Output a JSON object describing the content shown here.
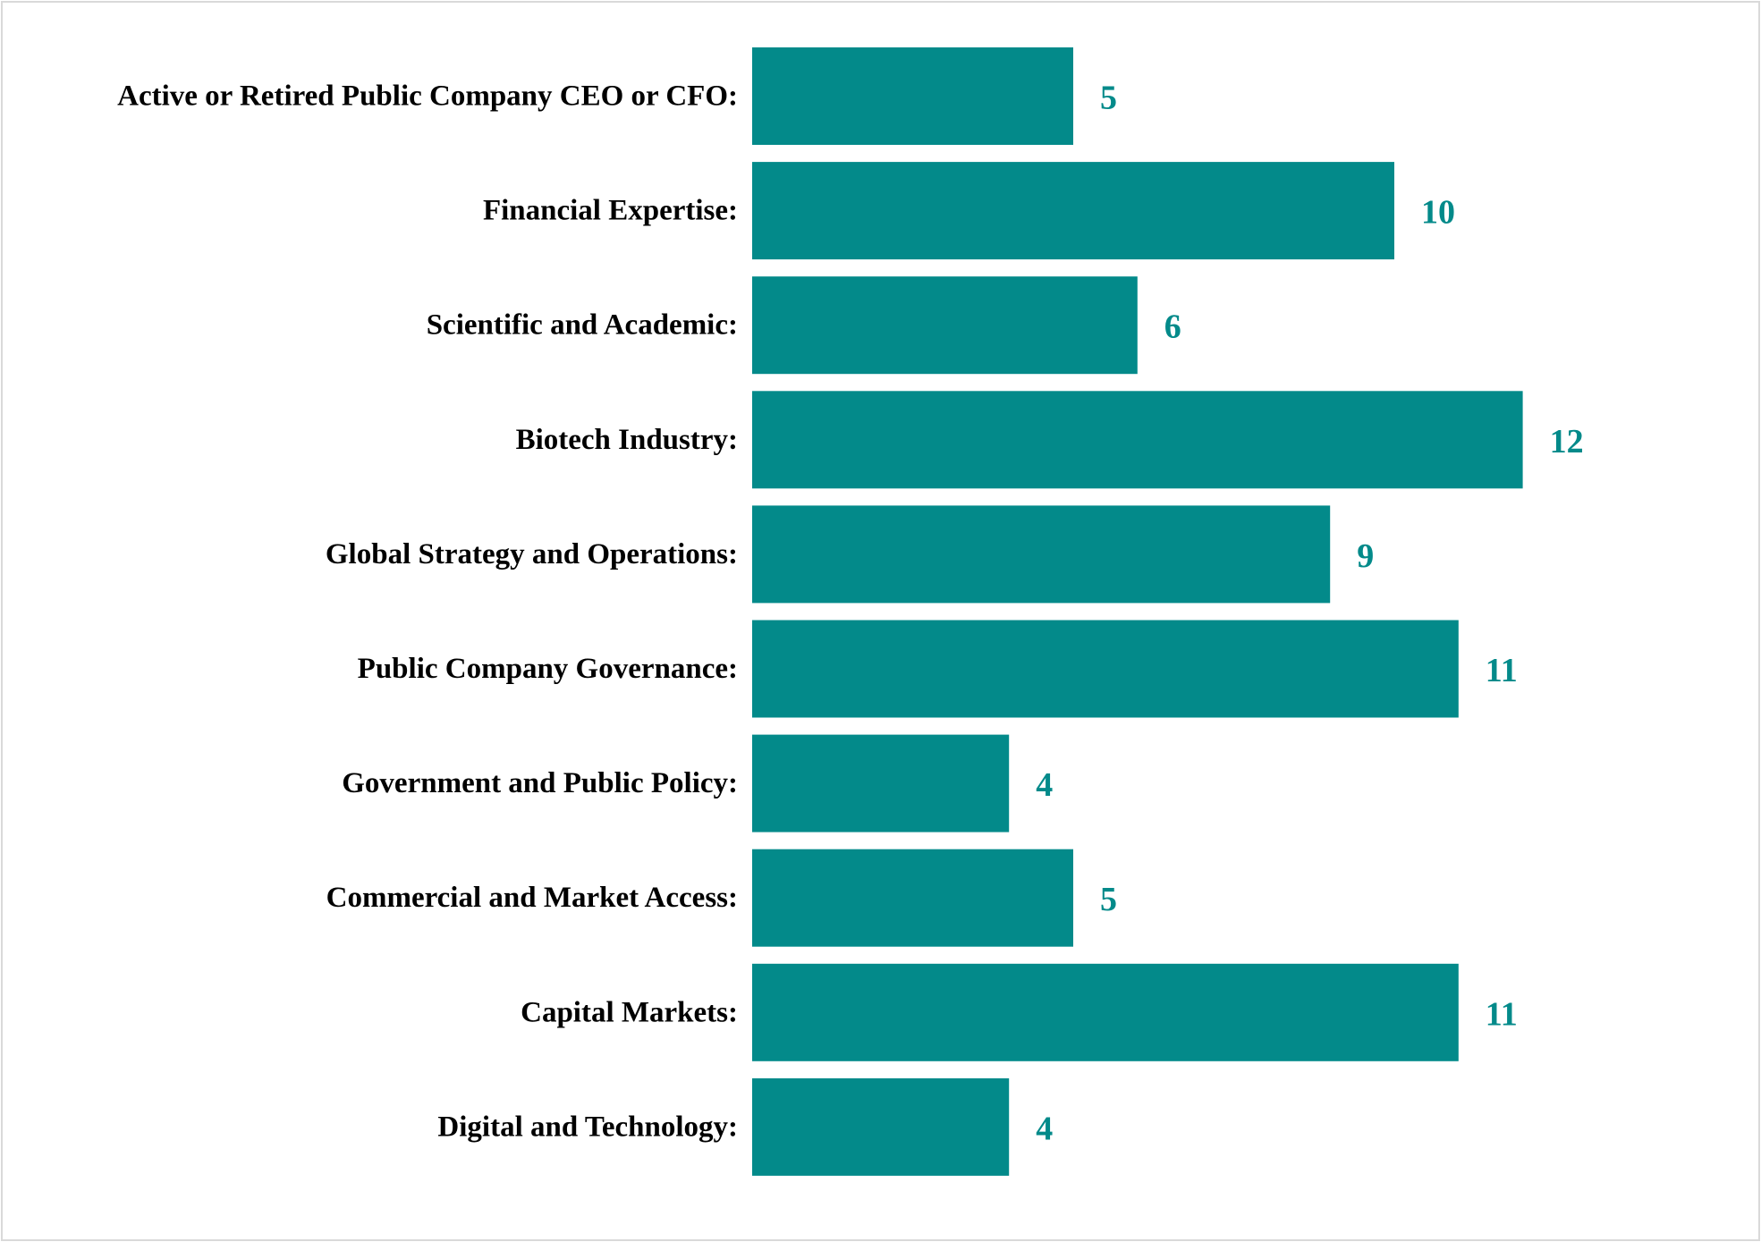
{
  "chart_data": {
    "type": "bar",
    "orientation": "horizontal",
    "categories": [
      "Active or Retired Public Company CEO or CFO:",
      "Financial Expertise:",
      "Scientific and Academic:",
      "Biotech Industry:",
      "Global Strategy and Operations:",
      "Public Company Governance:",
      "Government and Public Policy:",
      "Commercial and Market Access:",
      "Capital Markets:",
      "Digital and Technology:"
    ],
    "values": [
      5,
      10,
      6,
      12,
      9,
      11,
      4,
      5,
      11,
      4
    ],
    "data_labels": [
      "5",
      "10",
      "6",
      "12",
      "9",
      "11",
      "4",
      "5",
      "11",
      "4"
    ],
    "title": "",
    "xlabel": "",
    "ylabel": "",
    "xlim": [
      0,
      12
    ],
    "grid": false,
    "legend": "none",
    "colors": {
      "bar": "#038a8a",
      "value_label": "#038a8a",
      "category_label": "#000000",
      "frame_border": "#d9d9d9"
    }
  }
}
